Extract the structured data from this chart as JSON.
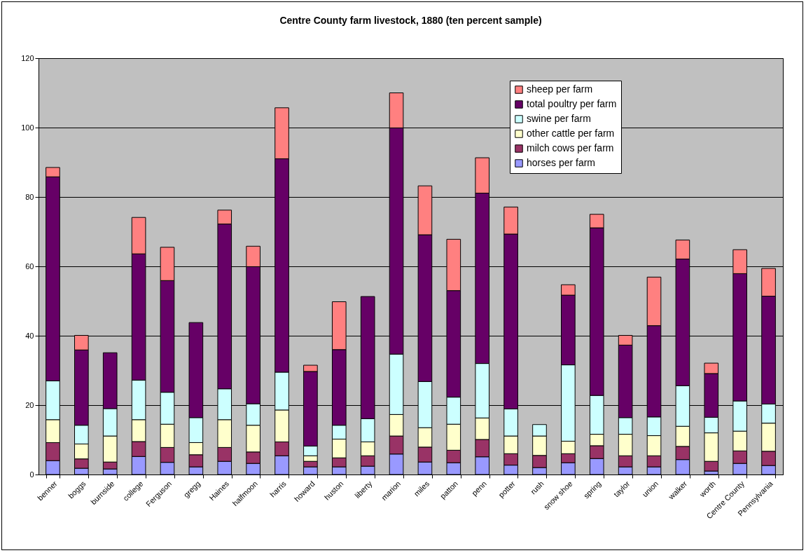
{
  "chart_data": {
    "type": "bar",
    "title": "Centre County farm livestock, 1880 (ten percent sample)",
    "stacked": true,
    "grid": "y",
    "legend": "top right",
    "categories": [
      "benner",
      "boggs",
      "burnside",
      "college",
      "Ferguson",
      "gregg",
      "Haines",
      "halfmoon",
      "harris",
      "howard",
      "huston",
      "liberty",
      "marion",
      "miles",
      "patton",
      "penn",
      "potter",
      "rush",
      "snow shoe",
      "spring",
      "taylor",
      "union",
      "walker",
      "worth",
      "Centre County",
      "Pennsylvania"
    ],
    "ylim": [
      0,
      120
    ],
    "yticks": [
      0,
      20,
      40,
      60,
      80,
      100,
      120
    ],
    "series": [
      {
        "name": "horses per farm",
        "color": "#9999ff",
        "values": [
          4,
          1.8,
          1.6,
          5.2,
          3.5,
          2.2,
          3.8,
          3.2,
          5.4,
          2.2,
          2.2,
          2.4,
          5.9,
          3.6,
          3.4,
          5.1,
          2.7,
          2.0,
          3.4,
          4.6,
          2.2,
          2.2,
          4.3,
          1.0,
          3.2,
          2.6
        ]
      },
      {
        "name": "milch cows per farm",
        "color": "#993366",
        "values": [
          5.2,
          2.7,
          2.0,
          4.3,
          4.3,
          3.5,
          4.0,
          3.3,
          4.0,
          1.6,
          2.6,
          3.0,
          5.2,
          4.3,
          3.6,
          5.0,
          3.3,
          3.5,
          2.6,
          3.7,
          3.2,
          3.2,
          3.8,
          2.8,
          3.6,
          4.1
        ]
      },
      {
        "name": "other cattle per farm",
        "color": "#ffffcc",
        "values": [
          6.6,
          4.3,
          7.5,
          6.3,
          6.7,
          3.5,
          8.0,
          7.7,
          9.2,
          1.6,
          5.4,
          4.0,
          6.2,
          5.6,
          7.5,
          6.2,
          5.1,
          5.6,
          3.6,
          3.3,
          6.2,
          5.8,
          5.8,
          8.2,
          5.7,
          8.1
        ]
      },
      {
        "name": "swine per farm",
        "color": "#ccffff",
        "values": [
          11.2,
          5.4,
          7.9,
          11.4,
          9.2,
          7.2,
          8.9,
          6.2,
          10.9,
          2.8,
          4.0,
          6.7,
          17.4,
          13.3,
          7.8,
          15.7,
          7.8,
          3.3,
          22.0,
          11.2,
          4.8,
          5.4,
          11.7,
          4.5,
          8.7,
          5.5
        ]
      },
      {
        "name": "total poultry per farm",
        "color": "#660066",
        "values": [
          58.8,
          21.7,
          16.1,
          36.4,
          32.2,
          27.4,
          47.5,
          39.5,
          61.5,
          21.5,
          21.8,
          35.2,
          65.2,
          42.3,
          30.7,
          49.1,
          50.4,
          null,
          20.1,
          48.3,
          20.9,
          26.3,
          36.5,
          12.6,
          36.7,
          31.1
        ]
      },
      {
        "name": "sheep per farm",
        "color": "#ff8080",
        "values": [
          2.7,
          4.2,
          null,
          10.5,
          9.6,
          null,
          4.0,
          5.9,
          14.7,
          1.8,
          13.8,
          null,
          10.1,
          14.1,
          14.8,
          10.2,
          7.8,
          null,
          3.0,
          3.9,
          2.8,
          14.0,
          5.5,
          3.0,
          6.9,
          8.0
        ]
      }
    ]
  }
}
